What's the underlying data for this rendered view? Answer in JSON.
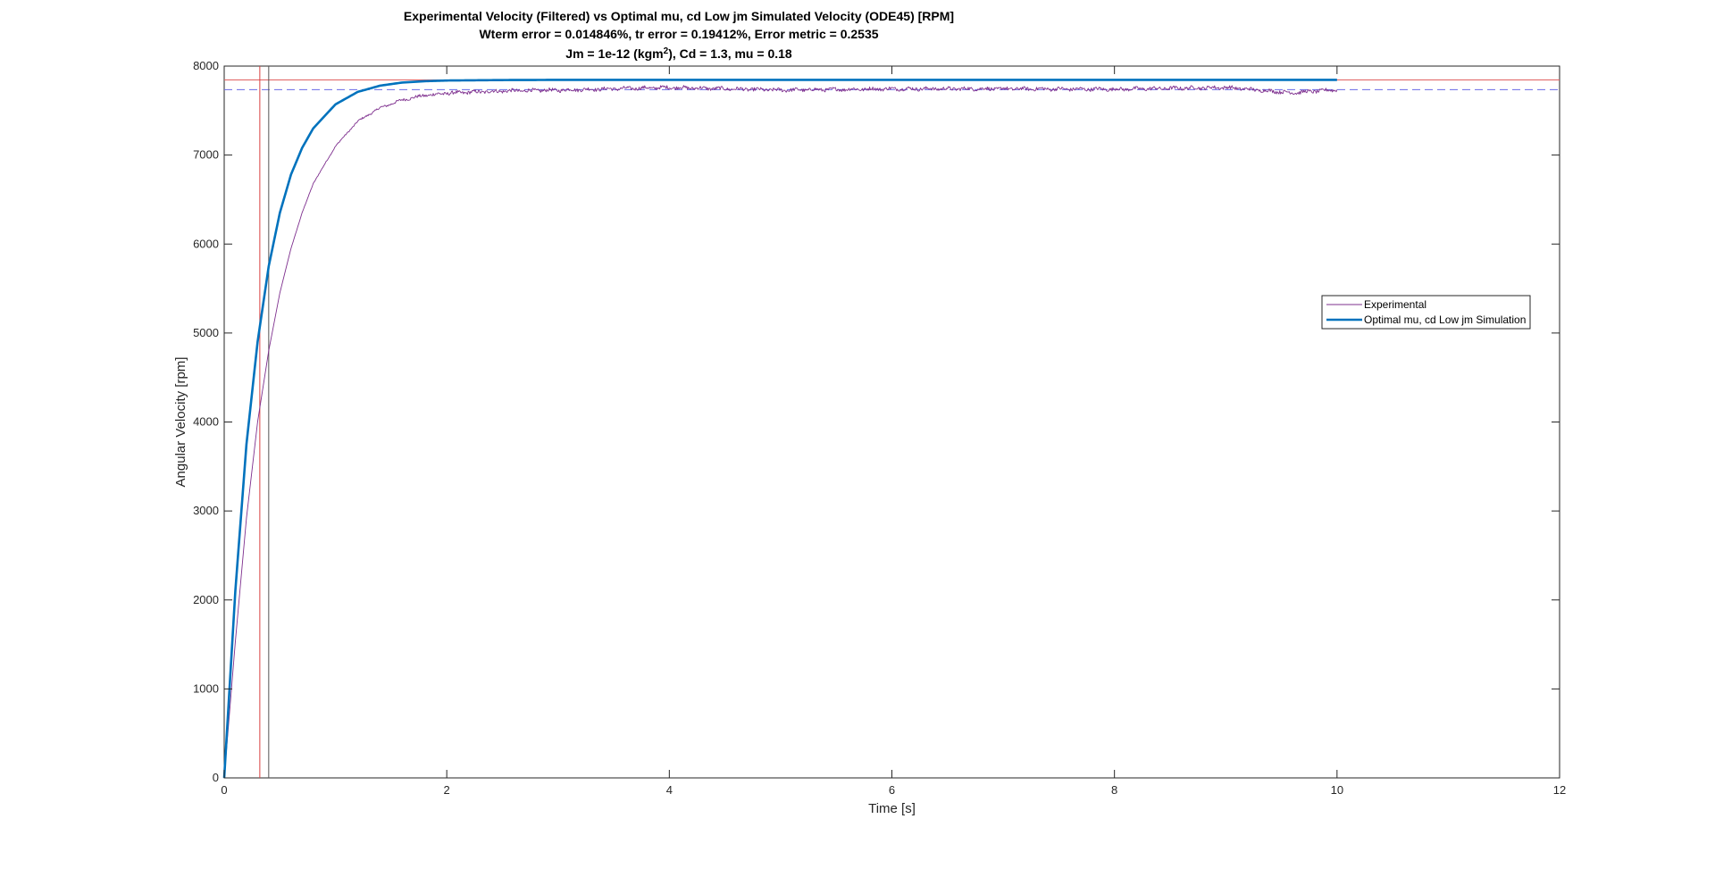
{
  "chart_data": {
    "type": "line",
    "title_lines": [
      "Experimental Velocity (Filtered) vs Optimal mu, cd Low jm Simulated Velocity (ODE45) [RPM]",
      "Wterm error = 0.014846%, tr error = 0.19412%, Error metric = 0.2535"
    ],
    "title_line3": {
      "prefix": "Jm = 1e-12 (kgm",
      "superscript": "2",
      "suffix": "), Cd = 1.3, mu = 0.18"
    },
    "xlabel": "Time [s]",
    "ylabel": "Angular Velocity [rpm]",
    "xlim": [
      0,
      12
    ],
    "ylim": [
      0,
      8000
    ],
    "xticks": [
      0,
      2,
      4,
      6,
      8,
      10,
      12
    ],
    "yticks": [
      0,
      1000,
      2000,
      3000,
      4000,
      5000,
      6000,
      7000,
      8000
    ],
    "grid": false,
    "legend_position": "right, upper-middle",
    "series": [
      {
        "name": "Experimental",
        "color": "#7e2f8e",
        "line_width": "thin",
        "noisy": true,
        "x": [
          0,
          0.1,
          0.2,
          0.3,
          0.4,
          0.5,
          0.6,
          0.7,
          0.8,
          1.0,
          1.2,
          1.4,
          1.6,
          1.8,
          2.0,
          2.5,
          3.0,
          4.0,
          5.0,
          6.0,
          7.0,
          8.0,
          9.0,
          9.6,
          10.0
        ],
        "y": [
          0,
          1530,
          2920,
          4000,
          4800,
          5450,
          5950,
          6350,
          6680,
          7100,
          7380,
          7530,
          7620,
          7670,
          7695,
          7720,
          7730,
          7760,
          7730,
          7745,
          7745,
          7740,
          7760,
          7700,
          7735
        ]
      },
      {
        "name": "Optimal mu, cd Low jm Simulation",
        "color": "#0072bd",
        "line_width": "thick",
        "noisy": false,
        "x": [
          0,
          0.1,
          0.2,
          0.3,
          0.4,
          0.5,
          0.6,
          0.7,
          0.8,
          1.0,
          1.2,
          1.4,
          1.6,
          1.8,
          2.0,
          2.5,
          3.0,
          4.0,
          5.0,
          6.0,
          7.0,
          8.0,
          9.0,
          10.0
        ],
        "y": [
          0,
          2100,
          3750,
          4900,
          5750,
          6350,
          6780,
          7080,
          7300,
          7570,
          7710,
          7780,
          7815,
          7830,
          7838,
          7843,
          7845,
          7845,
          7845,
          7845,
          7845,
          7845,
          7845,
          7845
        ]
      }
    ],
    "reference_lines": [
      {
        "kind": "horizontal",
        "value": 7845,
        "style": "solid",
        "color": "#e06060",
        "meaning": "simulated terminal velocity"
      },
      {
        "kind": "horizontal",
        "value": 7735,
        "style": "dashed",
        "color": "#6a6ae6",
        "meaning": "experimental terminal velocity"
      },
      {
        "kind": "vertical",
        "value": 0.32,
        "style": "solid",
        "color": "#d94040",
        "meaning": "rise time marker"
      },
      {
        "kind": "vertical",
        "value": 0.4,
        "style": "solid",
        "color": "#555555",
        "meaning": "rise time marker"
      }
    ]
  }
}
